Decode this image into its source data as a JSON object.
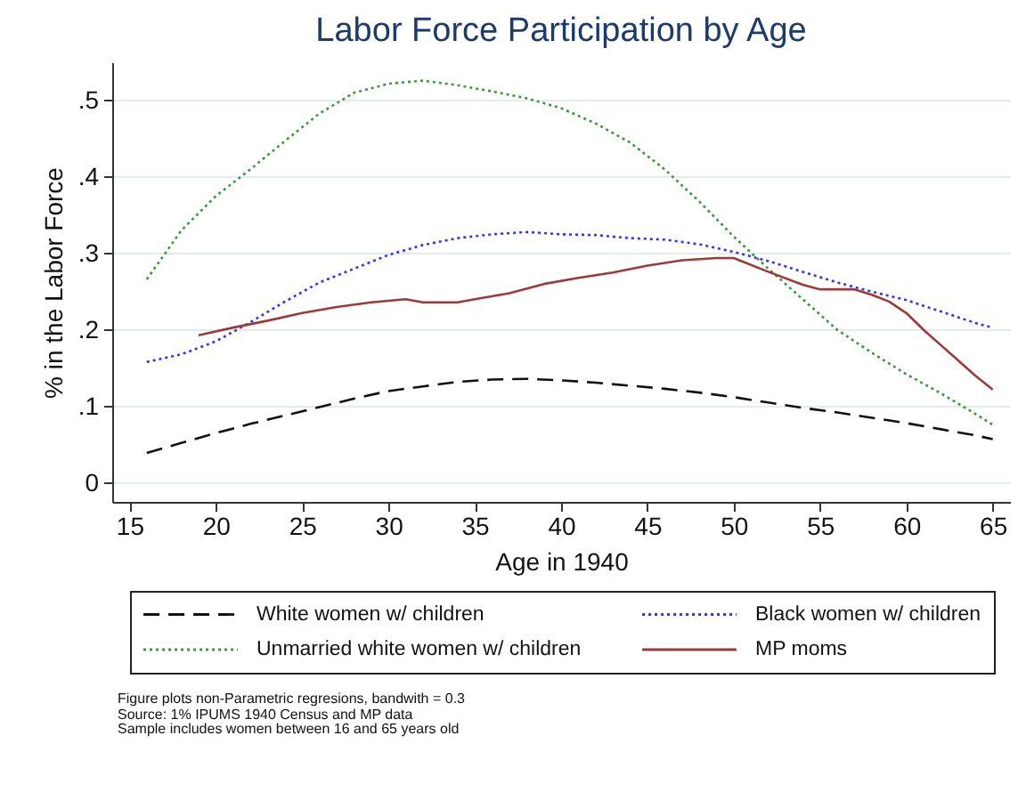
{
  "chart_data": {
    "type": "line",
    "title": "Labor Force Participation by Age",
    "xlabel": "Age in 1940",
    "ylabel": "% in the Labor Force",
    "xlim": [
      14,
      66
    ],
    "xticks": [
      15,
      20,
      25,
      30,
      35,
      40,
      45,
      50,
      55,
      60,
      65
    ],
    "ylim": [
      -0.025,
      0.55
    ],
    "yticks": [
      {
        "value": 0,
        "label": "0"
      },
      {
        "value": 0.1,
        "label": ".1"
      },
      {
        "value": 0.2,
        "label": ".2"
      },
      {
        "value": 0.3,
        "label": ".3"
      },
      {
        "value": 0.4,
        "label": ".4"
      },
      {
        "value": 0.5,
        "label": ".5"
      }
    ],
    "grid": "y",
    "legend": "bottom",
    "series": [
      {
        "name": "White women w/ children",
        "color": "#111111",
        "line_style": "dashed",
        "x": [
          16,
          18,
          20,
          22,
          24,
          26,
          28,
          30,
          32,
          34,
          36,
          38,
          40,
          42,
          44,
          46,
          48,
          50,
          52,
          54,
          56,
          58,
          60,
          62,
          64,
          65
        ],
        "values": [
          0.039,
          0.052,
          0.065,
          0.077,
          0.088,
          0.099,
          0.11,
          0.12,
          0.126,
          0.132,
          0.135,
          0.136,
          0.134,
          0.131,
          0.127,
          0.123,
          0.118,
          0.112,
          0.105,
          0.098,
          0.092,
          0.085,
          0.078,
          0.07,
          0.062,
          0.057
        ]
      },
      {
        "name": "Black women w/ children",
        "color": "#3434f0",
        "line_style": "dotted",
        "x": [
          16,
          18,
          20,
          22,
          24,
          26,
          28,
          30,
          32,
          34,
          36,
          38,
          40,
          42,
          44,
          46,
          48,
          50,
          52,
          54,
          56,
          58,
          60,
          62,
          64,
          65
        ],
        "values": [
          0.158,
          0.168,
          0.185,
          0.21,
          0.237,
          0.262,
          0.28,
          0.298,
          0.311,
          0.32,
          0.325,
          0.328,
          0.325,
          0.324,
          0.32,
          0.318,
          0.312,
          0.302,
          0.29,
          0.276,
          0.262,
          0.25,
          0.239,
          0.224,
          0.209,
          0.203
        ]
      },
      {
        "name": "Unmarried white women w/ children",
        "color": "#3a9a3a",
        "line_style": "dotted",
        "x": [
          16,
          18,
          20,
          22,
          24,
          26,
          28,
          30,
          32,
          34,
          36,
          38,
          40,
          42,
          44,
          46,
          48,
          50,
          52,
          54,
          56,
          58,
          60,
          62,
          64,
          65
        ],
        "values": [
          0.266,
          0.33,
          0.375,
          0.41,
          0.447,
          0.483,
          0.51,
          0.522,
          0.526,
          0.52,
          0.512,
          0.503,
          0.49,
          0.47,
          0.445,
          0.41,
          0.368,
          0.322,
          0.28,
          0.24,
          0.2,
          0.17,
          0.142,
          0.117,
          0.09,
          0.076
        ]
      },
      {
        "name": "MP moms",
        "color": "#9c3a3a",
        "line_style": "solid",
        "x": [
          19,
          21,
          23,
          25,
          27,
          29,
          31,
          32,
          34,
          35,
          37,
          39,
          41,
          43,
          45,
          47,
          49,
          50,
          52,
          54,
          55,
          57,
          58,
          59,
          60,
          61,
          62,
          63,
          64,
          65
        ],
        "values": [
          0.193,
          0.203,
          0.212,
          0.222,
          0.23,
          0.236,
          0.24,
          0.236,
          0.236,
          0.24,
          0.248,
          0.26,
          0.268,
          0.275,
          0.284,
          0.291,
          0.294,
          0.294,
          0.276,
          0.259,
          0.253,
          0.253,
          0.246,
          0.237,
          0.222,
          0.2,
          0.18,
          0.16,
          0.14,
          0.122
        ]
      }
    ],
    "annotations": [
      "Figure plots non-Parametric regresions, bandwith = 0.3",
      "Source: 1% IPUMS 1940 Census and MP data",
      "Sample includes women between 16 and 65 years old"
    ]
  }
}
